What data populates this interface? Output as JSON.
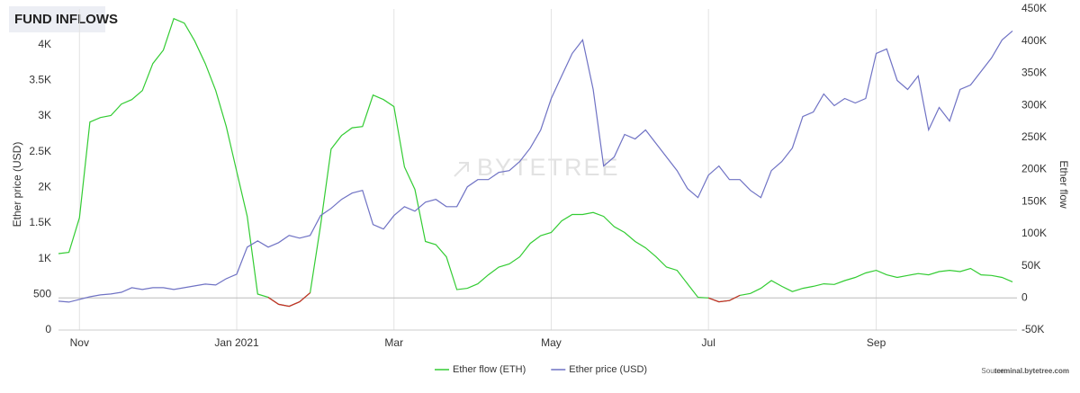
{
  "chart_data": {
    "type": "line",
    "title": "FUND INFLOWS",
    "watermark": "BYTETREE",
    "source_label": "Source:",
    "source": "terminal.bytetree.com",
    "y_label": "Ether price (USD)",
    "y2_label": "Ether flow",
    "categories": [
      null,
      null,
      "Nov",
      null,
      null,
      null,
      null,
      null,
      null,
      null,
      null,
      null,
      null,
      null,
      null,
      null,
      null,
      "Jan 2021",
      null,
      null,
      null,
      null,
      null,
      null,
      null,
      null,
      null,
      null,
      null,
      null,
      null,
      null,
      "Mar",
      null,
      null,
      null,
      null,
      null,
      null,
      null,
      null,
      null,
      null,
      null,
      null,
      null,
      null,
      "May",
      null,
      null,
      null,
      null,
      null,
      null,
      null,
      null,
      null,
      null,
      null,
      null,
      null,
      null,
      "Jul",
      null,
      null,
      null,
      null,
      null,
      null,
      null,
      null,
      null,
      null,
      null,
      null,
      null,
      null,
      null,
      "Sep",
      null,
      null,
      null,
      null,
      null,
      null,
      null,
      null,
      null,
      null,
      null,
      null,
      null
    ],
    "ylim": [
      0,
      4500
    ],
    "yticks": [
      0,
      500,
      {
        "value": 1000,
        "label": "1K"
      },
      {
        "value": 1500,
        "label": "1.5K"
      },
      {
        "value": 2000,
        "label": "2K"
      },
      {
        "value": 2500,
        "label": "2.5K"
      },
      {
        "value": 3000,
        "label": "3K"
      },
      {
        "value": 3500,
        "label": "3.5K"
      },
      {
        "value": 4000,
        "label": "4K"
      }
    ],
    "y2lim": [
      -50000,
      450000
    ],
    "y2ticks": [
      {
        "value": -50000,
        "label": "-50K"
      },
      0,
      {
        "value": 50000,
        "label": "50K"
      },
      {
        "value": 100000,
        "label": "100K"
      },
      {
        "value": 150000,
        "label": "150K"
      },
      {
        "value": 200000,
        "label": "200K"
      },
      {
        "value": 250000,
        "label": "250K"
      },
      {
        "value": 300000,
        "label": "300K"
      },
      {
        "value": 350000,
        "label": "350K"
      },
      {
        "value": 400000,
        "label": "400K"
      },
      {
        "value": 450000,
        "label": "450K"
      }
    ],
    "grid": true,
    "legend": "bottom",
    "series": [
      {
        "name": "Ether flow (ETH)",
        "color": "#33cc33",
        "negative_color": "#cc2a2a",
        "axis": "y2",
        "values": [
          69000,
          71000,
          125000,
          274000,
          281000,
          284000,
          302000,
          309000,
          323000,
          365000,
          386000,
          435000,
          428000,
          400000,
          365000,
          323000,
          267000,
          197000,
          127000,
          6000,
          1000,
          -10000,
          -13000,
          -6000,
          8000,
          113000,
          232000,
          253000,
          265000,
          267000,
          316000,
          309000,
          298000,
          204000,
          169000,
          88000,
          83000,
          64000,
          13000,
          15000,
          22000,
          36000,
          48000,
          53000,
          64000,
          85000,
          97000,
          102000,
          120000,
          130000,
          130000,
          133000,
          127000,
          111000,
          102000,
          88000,
          78000,
          64000,
          48000,
          43000,
          22000,
          1000,
          0,
          -6000,
          -4000,
          4000,
          7000,
          15000,
          27000,
          18000,
          10000,
          15000,
          18000,
          22000,
          21000,
          27000,
          32000,
          39000,
          43000,
          36000,
          32000,
          35000,
          38000,
          36000,
          41000,
          43000,
          41000,
          46000,
          36000,
          35000,
          32000,
          25000
        ]
      },
      {
        "name": "Ether price (USD)",
        "color": "#6f72c4",
        "values": [
          404,
          392,
          430,
          467,
          493,
          505,
          530,
          594,
          568,
          594,
          594,
          568,
          594,
          619,
          644,
          632,
          720,
          783,
          1162,
          1250,
          1162,
          1225,
          1326,
          1288,
          1326,
          1604,
          1705,
          1831,
          1920,
          1958,
          1478,
          1415,
          1604,
          1730,
          1667,
          1793,
          1831,
          1730,
          1730,
          2008,
          2109,
          2109,
          2210,
          2235,
          2362,
          2551,
          2804,
          3246,
          3562,
          3877,
          4067,
          3372,
          2299,
          2425,
          2741,
          2678,
          2804,
          2614,
          2425,
          2235,
          1983,
          1857,
          2172,
          2299,
          2109,
          2109,
          1958,
          1857,
          2235,
          2362,
          2551,
          2993,
          3057,
          3309,
          3145,
          3246,
          3183,
          3246,
          3877,
          3940,
          3498,
          3372,
          3562,
          2804,
          3120,
          2930,
          3372,
          3435,
          3625,
          3814,
          4067,
          4193
        ]
      }
    ]
  }
}
